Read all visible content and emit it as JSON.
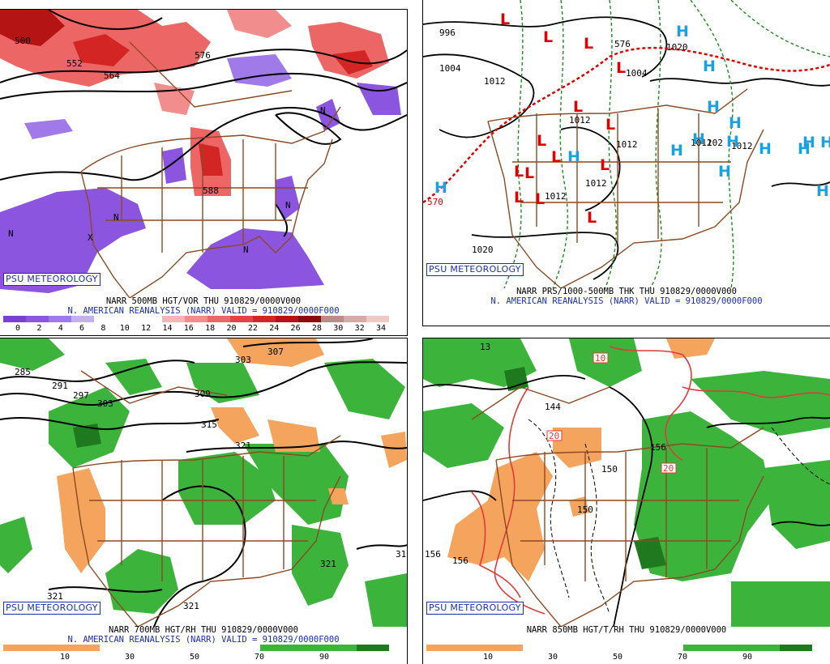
{
  "branding": "PSU METEOROLOGY",
  "panels": [
    {
      "id": "500mb",
      "title_line1": "NARR 500MB HGT/VOR THU 910829/0000V000",
      "title_line2": "N. AMERICAN REANALYSIS (NARR) VALID = 910829/0000F000",
      "contour_labels": [
        "552",
        "564",
        "576",
        "588",
        "500"
      ],
      "vorticity_markers": [
        "N",
        "X"
      ],
      "legend_ticks": [
        "0",
        "2",
        "4",
        "6",
        "8",
        "10",
        "12",
        "14",
        "16",
        "18",
        "20",
        "22",
        "24",
        "26",
        "28",
        "30",
        "32",
        "34"
      ],
      "legend_colors": [
        "#7a3fd6",
        "#8b55e0",
        "#a07ae8",
        "#c4b2f0",
        "#ffffff",
        "#ffffff",
        "#ffffff",
        "#f3b6b6",
        "#f28d8d",
        "#ec6666",
        "#e34444",
        "#d42525",
        "#b51414",
        "#8c0a0a",
        "#c08a8a",
        "#d9a9a9",
        "#f0c8c8"
      ]
    },
    {
      "id": "thickness",
      "title_line1": "NARR PRS/1000-500MB THK THU 910829/0000V000",
      "title_line2": "N. AMERICAN REANALYSIS (NARR) VALID = 910829/0000F000",
      "isobar_labels": [
        "996",
        "1004",
        "1012",
        "1012",
        "1012",
        "1012",
        "1020",
        "1020",
        "1004",
        "1012",
        "1012",
        "1012",
        "102"
      ],
      "thickness_labels": [
        "570",
        "576"
      ],
      "low_symbol": "L",
      "high_symbol": "H"
    },
    {
      "id": "700mb",
      "title_line1": "NARR 700MB HGT/RH THU 910829/0000V000",
      "title_line2": "N. AMERICAN REANALYSIS (NARR) VALID = 910829/0000F000",
      "contour_labels": [
        "285",
        "291",
        "297",
        "303",
        "303",
        "309",
        "315",
        "321",
        "321",
        "321",
        "321",
        "307",
        "31"
      ],
      "legend_ticks": [
        "10",
        "30",
        "50",
        "70",
        "90"
      ]
    },
    {
      "id": "850mb",
      "title_line1": "NARR 850MB HGT/T/RH THU 910829/0000V000",
      "contour_labels": [
        "144",
        "150",
        "150",
        "156",
        "156",
        "156",
        "13"
      ],
      "temp_labels": [
        "10",
        "20",
        "20"
      ],
      "legend_ticks": [
        "10",
        "30",
        "50",
        "70",
        "90"
      ]
    }
  ],
  "colors": {
    "dry": "#f4a45c",
    "moist": "#3cb43c",
    "very_moist": "#1f7a1f",
    "border": "#8b4a23",
    "brand": "#1a2fb8",
    "low": "#e00000",
    "high": "#1ba0e0"
  }
}
